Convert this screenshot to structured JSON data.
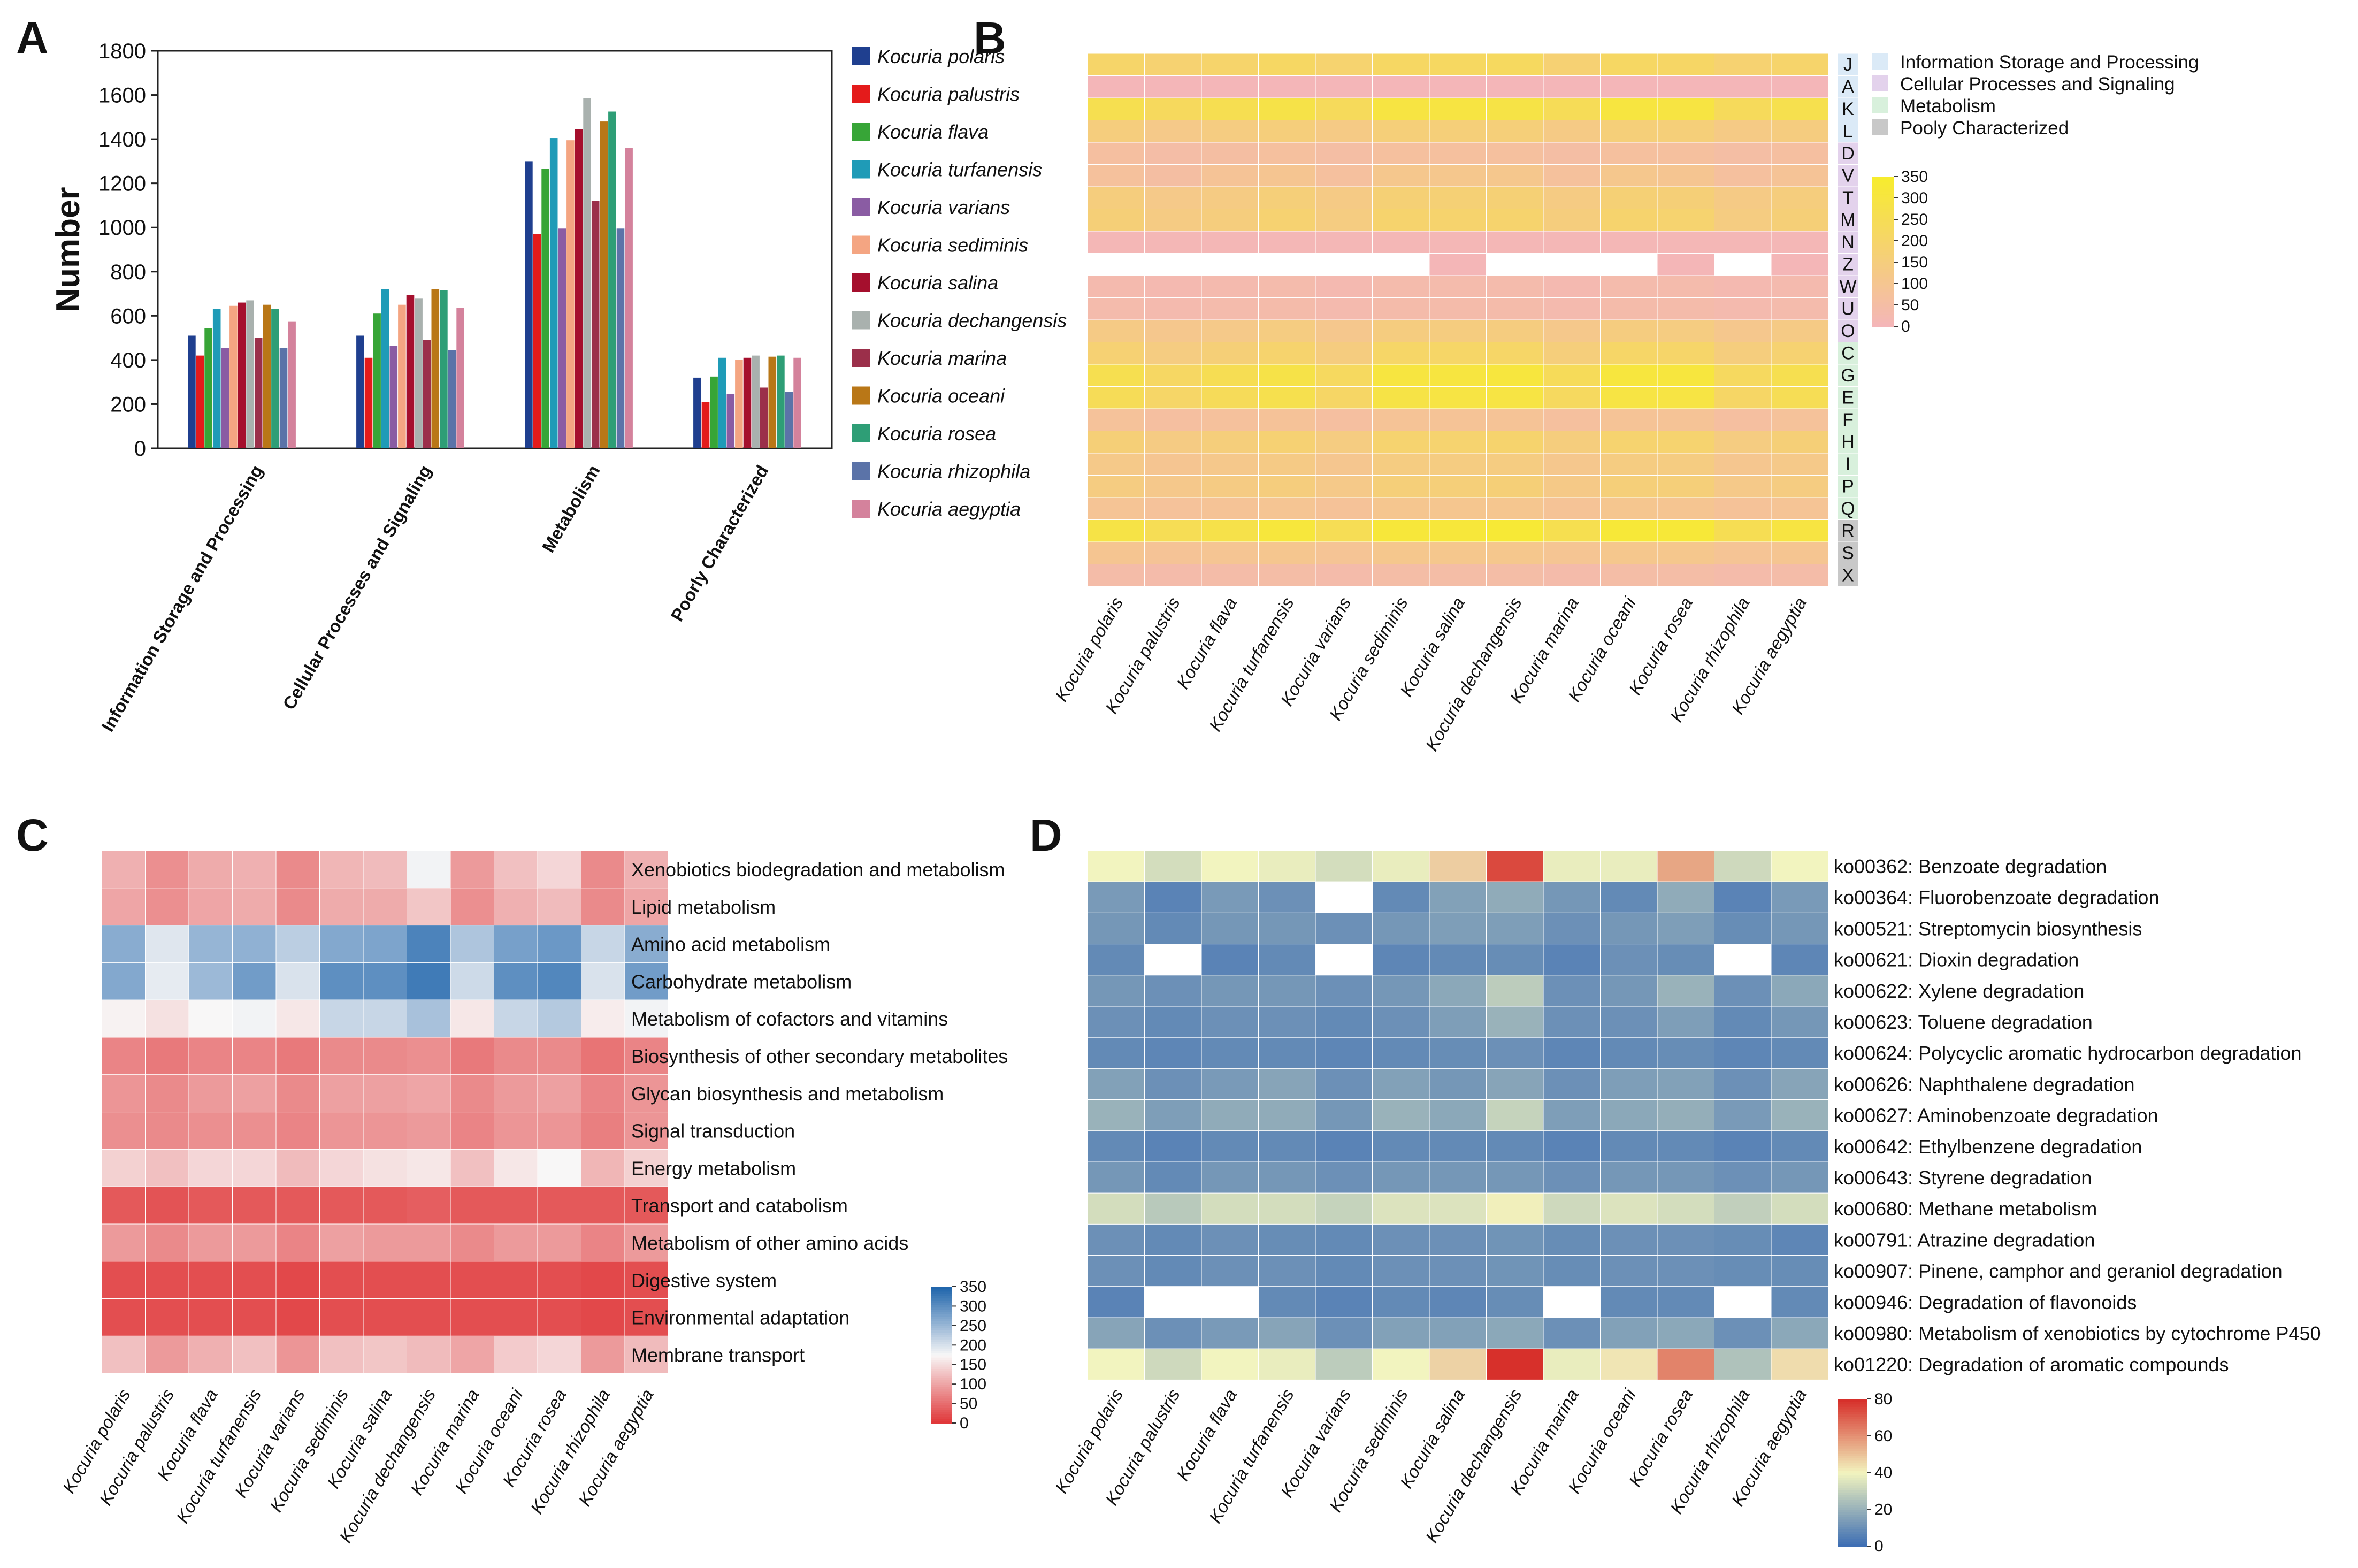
{
  "panel_labels": {
    "A": "A",
    "B": "B",
    "C": "C",
    "D": "D"
  },
  "species": [
    "Kocuria polaris",
    "Kocuria palustris",
    "Kocuria flava",
    "Kocuria turfanensis",
    "Kocuria varians",
    "Kocuria sediminis",
    "Kocuria salina",
    "Kocuria dechangensis",
    "Kocuria marina",
    "Kocuria oceani",
    "Kocuria rosea",
    "Kocuria rhizophila",
    "Kocuria aegyptia"
  ],
  "species_colors": [
    "#1f3f8f",
    "#e41b1b",
    "#37a537",
    "#1f9bb7",
    "#8a5ca3",
    "#f4a582",
    "#a50f2d",
    "#a9b1ae",
    "#9b2f4a",
    "#b97717",
    "#2e9e76",
    "#5b73a8",
    "#d4829c"
  ],
  "chart_data": [
    {
      "type": "bar",
      "panel": "A",
      "title": "",
      "ylabel": "Number",
      "xlabel": "",
      "ylim": [
        0,
        1800
      ],
      "yticks": [
        0,
        200,
        400,
        600,
        800,
        1000,
        1200,
        1400,
        1600,
        1800
      ],
      "categories": [
        "Information Storage and Processing",
        "Cellular Processes and Signaling",
        "Metabolism",
        "Poorly Characterized"
      ],
      "legend_position": "right",
      "series": [
        {
          "name": "Kocuria polaris",
          "values": [
            510,
            510,
            1300,
            320
          ]
        },
        {
          "name": "Kocuria palustris",
          "values": [
            420,
            410,
            970,
            210
          ]
        },
        {
          "name": "Kocuria flava",
          "values": [
            545,
            610,
            1265,
            325
          ]
        },
        {
          "name": "Kocuria turfanensis",
          "values": [
            630,
            720,
            1405,
            410
          ]
        },
        {
          "name": "Kocuria varians",
          "values": [
            455,
            465,
            995,
            245
          ]
        },
        {
          "name": "Kocuria sediminis",
          "values": [
            645,
            650,
            1395,
            400
          ]
        },
        {
          "name": "Kocuria salina",
          "values": [
            660,
            695,
            1445,
            410
          ]
        },
        {
          "name": "Kocuria dechangensis",
          "values": [
            670,
            680,
            1585,
            420
          ]
        },
        {
          "name": "Kocuria marina",
          "values": [
            500,
            490,
            1120,
            275
          ]
        },
        {
          "name": "Kocuria oceani",
          "values": [
            650,
            720,
            1480,
            415
          ]
        },
        {
          "name": "Kocuria rosea",
          "values": [
            630,
            715,
            1525,
            420
          ]
        },
        {
          "name": "Kocuria rhizophila",
          "values": [
            455,
            445,
            995,
            255
          ]
        },
        {
          "name": "Kocuria aegyptia",
          "values": [
            575,
            635,
            1360,
            410
          ]
        }
      ]
    },
    {
      "type": "heatmap",
      "panel": "B",
      "title": "",
      "rows": [
        "J",
        "A",
        "K",
        "L",
        "D",
        "V",
        "T",
        "M",
        "N",
        "Z",
        "W",
        "U",
        "O",
        "C",
        "G",
        "E",
        "F",
        "H",
        "I",
        "P",
        "Q",
        "R",
        "S",
        "X"
      ],
      "row_groups": [
        "info",
        "info",
        "info",
        "info",
        "cell",
        "cell",
        "cell",
        "cell",
        "cell",
        "cell",
        "cell",
        "cell",
        "cell",
        "meta",
        "meta",
        "meta",
        "meta",
        "meta",
        "meta",
        "meta",
        "meta",
        "poor",
        "poor",
        "poor"
      ],
      "group_legend": [
        {
          "key": "info",
          "label": "Information Storage and Processing",
          "color": "#dbeaf7"
        },
        {
          "key": "cell",
          "label": "Cellular Processes and Signaling",
          "color": "#e3d2ec"
        },
        {
          "key": "meta",
          "label": "Metabolism",
          "color": "#d8f0dc"
        },
        {
          "key": "poor",
          "label": "Pooly Characterized",
          "color": "#c8c8c8"
        }
      ],
      "colorbar": {
        "ticks": [
          0,
          50,
          100,
          150,
          200,
          250,
          300,
          350
        ],
        "low": "#f4b6b8",
        "high": "#f7ec2e"
      },
      "missing_color": "#ffffff",
      "values": [
        [
          200,
          180,
          195,
          215,
          185,
          215,
          220,
          225,
          175,
          215,
          210,
          180,
          195
        ],
        [
          0,
          0,
          0,
          0,
          0,
          0,
          0,
          0,
          0,
          0,
          0,
          0,
          0
        ],
        [
          265,
          230,
          260,
          285,
          235,
          300,
          300,
          290,
          245,
          305,
          300,
          235,
          270
        ],
        [
          150,
          120,
          140,
          155,
          130,
          160,
          160,
          160,
          130,
          160,
          160,
          130,
          145
        ],
        [
          60,
          45,
          55,
          65,
          50,
          65,
          65,
          65,
          50,
          65,
          65,
          50,
          60
        ],
        [
          70,
          55,
          85,
          100,
          65,
          110,
          110,
          110,
          70,
          110,
          100,
          65,
          85
        ],
        [
          150,
          120,
          135,
          160,
          130,
          170,
          170,
          170,
          135,
          170,
          165,
          130,
          150
        ],
        [
          165,
          135,
          150,
          180,
          140,
          190,
          190,
          190,
          150,
          190,
          185,
          140,
          165
        ],
        [
          5,
          5,
          5,
          5,
          5,
          5,
          5,
          5,
          5,
          5,
          5,
          5,
          5
        ],
        [
          null,
          null,
          null,
          null,
          null,
          null,
          2,
          null,
          null,
          null,
          2,
          null,
          2
        ],
        [
          25,
          20,
          25,
          30,
          20,
          30,
          30,
          30,
          20,
          30,
          30,
          20,
          25
        ],
        [
          30,
          25,
          30,
          35,
          25,
          35,
          35,
          35,
          25,
          35,
          35,
          25,
          30
        ],
        [
          130,
          110,
          120,
          140,
          110,
          145,
          145,
          145,
          115,
          145,
          140,
          110,
          130
        ],
        [
          175,
          140,
          165,
          190,
          145,
          205,
          205,
          205,
          155,
          205,
          200,
          150,
          180
        ],
        [
          265,
          215,
          255,
          285,
          225,
          305,
          305,
          310,
          240,
          310,
          310,
          225,
          265
        ],
        [
          245,
          205,
          240,
          270,
          210,
          290,
          295,
          295,
          225,
          295,
          295,
          210,
          250
        ],
        [
          75,
          60,
          70,
          80,
          60,
          85,
          85,
          85,
          65,
          85,
          85,
          60,
          75
        ],
        [
          165,
          135,
          155,
          175,
          140,
          185,
          185,
          190,
          150,
          185,
          185,
          140,
          165
        ],
        [
          120,
          100,
          115,
          130,
          105,
          140,
          140,
          140,
          110,
          140,
          140,
          105,
          120
        ],
        [
          140,
          115,
          135,
          150,
          120,
          160,
          160,
          165,
          125,
          160,
          160,
          120,
          140
        ],
        [
          90,
          75,
          85,
          95,
          80,
          105,
          105,
          105,
          85,
          105,
          100,
          80,
          90
        ],
        [
          290,
          250,
          280,
          315,
          250,
          320,
          320,
          330,
          265,
          325,
          325,
          255,
          300
        ],
        [
          100,
          85,
          95,
          105,
          90,
          110,
          110,
          110,
          95,
          110,
          110,
          90,
          100
        ],
        [
          40,
          35,
          40,
          45,
          35,
          45,
          45,
          45,
          35,
          45,
          45,
          35,
          40
        ]
      ]
    },
    {
      "type": "heatmap",
      "panel": "C",
      "title": "",
      "rows": [
        "Xenobiotics biodegradation and metabolism",
        "Lipid metabolism",
        "Amino acid metabolism",
        "Carbohydrate metabolism",
        "Metabolism of cofactors and vitamins",
        "Biosynthesis of other secondary metabolites",
        "Glycan biosynthesis and metabolism",
        "Signal transduction",
        "Energy metabolism",
        "Transport and catabolism",
        "Metabolism of other amino acids",
        "Digestive system",
        "Environmental adaptation",
        "Membrane transport"
      ],
      "colorbar": {
        "ticks": [
          0,
          50,
          100,
          150,
          200,
          250,
          300,
          350
        ],
        "low": "#e0383a",
        "mid": "#f8f7f7",
        "high": "#2166ac"
      },
      "values": [
        [
          110,
          80,
          105,
          110,
          75,
          115,
          120,
          180,
          90,
          125,
          145,
          75,
          110
        ],
        [
          100,
          80,
          100,
          105,
          75,
          105,
          105,
          130,
          80,
          110,
          120,
          75,
          100
        ],
        [
          265,
          195,
          255,
          260,
          225,
          270,
          275,
          315,
          235,
          280,
          290,
          215,
          265
        ],
        [
          270,
          190,
          250,
          285,
          200,
          300,
          300,
          325,
          210,
          300,
          310,
          200,
          285
        ],
        [
          170,
          155,
          175,
          180,
          160,
          215,
          215,
          240,
          160,
          215,
          230,
          165,
          180
        ],
        [
          70,
          60,
          70,
          70,
          60,
          75,
          75,
          80,
          60,
          75,
          75,
          55,
          70
        ],
        [
          85,
          75,
          90,
          95,
          75,
          95,
          95,
          100,
          75,
          90,
          95,
          70,
          85
        ],
        [
          80,
          75,
          80,
          80,
          70,
          85,
          85,
          90,
          70,
          85,
          85,
          65,
          85
        ],
        [
          140,
          125,
          145,
          145,
          120,
          145,
          155,
          160,
          125,
          160,
          175,
          115,
          140
        ],
        [
          30,
          25,
          30,
          30,
          30,
          30,
          30,
          35,
          30,
          30,
          30,
          30,
          30
        ],
        [
          90,
          75,
          90,
          90,
          70,
          95,
          90,
          90,
          75,
          90,
          90,
          70,
          90
        ],
        [
          20,
          20,
          20,
          20,
          15,
          20,
          20,
          20,
          20,
          20,
          20,
          15,
          20
        ],
        [
          20,
          20,
          20,
          20,
          15,
          20,
          20,
          20,
          20,
          20,
          20,
          15,
          20
        ],
        [
          125,
          90,
          110,
          125,
          85,
          125,
          130,
          120,
          100,
          135,
          145,
          90,
          120
        ]
      ]
    },
    {
      "type": "heatmap",
      "panel": "D",
      "title": "",
      "rows": [
        "ko00362: Benzoate degradation",
        "ko00364: Fluorobenzoate degradation",
        "ko00521: Streptomycin biosynthesis",
        "ko00621: Dioxin degradation",
        "ko00622: Xylene degradation",
        "ko00623: Toluene degradation",
        "ko00624: Polycyclic aromatic hydrocarbon degradation",
        "ko00626: Naphthalene degradation",
        "ko00627: Aminobenzoate degradation",
        "ko00642: Ethylbenzene degradation",
        "ko00643: Styrene degradation",
        "ko00680: Methane metabolism",
        "ko00791: Atrazine degradation",
        "ko00907: Pinene, camphor and geraniol degradation",
        "ko00946: Degradation of flavonoids",
        "ko00980: Metabolism of xenobiotics by cytochrome P450",
        "ko01220: Degradation of aromatic compounds"
      ],
      "colorbar": {
        "ticks": [
          0,
          20,
          40,
          60,
          80
        ],
        "low": "#3f6fb4",
        "mid": "#f2f4bf",
        "high": "#d7302b"
      },
      "missing_color": "#ffffff",
      "values": [
        [
          40,
          33,
          40,
          38,
          33,
          38,
          48,
          75,
          38,
          38,
          56,
          32,
          40
        ],
        [
          13,
          6,
          13,
          10,
          null,
          8,
          15,
          18,
          12,
          8,
          18,
          6,
          13
        ],
        [
          12,
          8,
          12,
          12,
          10,
          12,
          14,
          14,
          10,
          12,
          14,
          9,
          12
        ],
        [
          8,
          null,
          6,
          8,
          null,
          7,
          8,
          9,
          6,
          10,
          9,
          null,
          7
        ],
        [
          12,
          10,
          12,
          12,
          10,
          12,
          17,
          28,
          10,
          12,
          20,
          10,
          17
        ],
        [
          10,
          8,
          10,
          10,
          8,
          10,
          14,
          20,
          10,
          10,
          14,
          8,
          12
        ],
        [
          8,
          7,
          8,
          8,
          7,
          8,
          9,
          10,
          7,
          8,
          9,
          7,
          8
        ],
        [
          15,
          10,
          13,
          16,
          10,
          15,
          12,
          16,
          10,
          14,
          15,
          10,
          16
        ],
        [
          20,
          14,
          18,
          18,
          12,
          20,
          17,
          30,
          14,
          17,
          19,
          13,
          20
        ],
        [
          8,
          6,
          8,
          8,
          6,
          8,
          8,
          8,
          6,
          8,
          8,
          6,
          8
        ],
        [
          12,
          8,
          12,
          12,
          10,
          12,
          12,
          12,
          10,
          12,
          12,
          10,
          12
        ],
        [
          33,
          27,
          33,
          33,
          30,
          35,
          35,
          41,
          32,
          35,
          33,
          29,
          33
        ],
        [
          10,
          8,
          10,
          9,
          8,
          10,
          10,
          11,
          9,
          10,
          10,
          9,
          7
        ],
        [
          10,
          8,
          10,
          10,
          8,
          10,
          10,
          11,
          9,
          10,
          10,
          9,
          9
        ],
        [
          6,
          null,
          null,
          8,
          6,
          8,
          7,
          9,
          null,
          8,
          8,
          null,
          8
        ],
        [
          16,
          10,
          13,
          16,
          10,
          15,
          15,
          17,
          10,
          15,
          17,
          10,
          17
        ],
        [
          40,
          32,
          40,
          38,
          28,
          40,
          47,
          80,
          38,
          43,
          63,
          25,
          45
        ]
      ]
    }
  ]
}
